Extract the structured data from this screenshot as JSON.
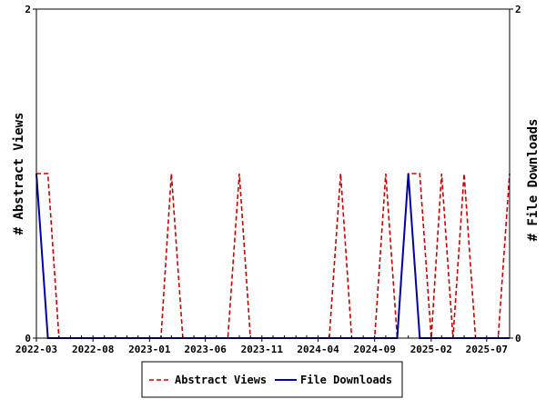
{
  "chart_data": {
    "type": "line",
    "xlabel": "",
    "ylabel_left": "# Abstract Views",
    "ylabel_right": "# File Downloads",
    "xlim": [
      "2022-03-01",
      "2025-09-01"
    ],
    "ylim_left": [
      0,
      2
    ],
    "ylim_right": [
      0,
      2
    ],
    "yticks_left": [
      "0",
      "2"
    ],
    "yticks_right": [
      "0",
      "2"
    ],
    "xticks": [
      {
        "date": "2022-03-01",
        "label": "2022-03"
      },
      {
        "date": "2022-08-01",
        "label": "2022-08"
      },
      {
        "date": "2023-01-01",
        "label": "2023-01"
      },
      {
        "date": "2023-06-01",
        "label": "2023-06"
      },
      {
        "date": "2023-11-01",
        "label": "2023-11"
      },
      {
        "date": "2024-04-01",
        "label": "2024-04"
      },
      {
        "date": "2024-09-01",
        "label": "2024-09"
      },
      {
        "date": "2025-02-01",
        "label": "2025-02"
      },
      {
        "date": "2025-07-01",
        "label": "2025-07"
      }
    ],
    "grid": false,
    "legend_position": "bottom-center",
    "series": [
      {
        "name": "Abstract Views",
        "axis": "left",
        "color": "#cc0000",
        "dash": "dashed",
        "points": [
          [
            "2022-03-01",
            1
          ],
          [
            "2022-04-01",
            1
          ],
          [
            "2022-05-01",
            0
          ],
          [
            "2022-06-01",
            0
          ],
          [
            "2022-07-01",
            0
          ],
          [
            "2022-08-01",
            0
          ],
          [
            "2022-09-01",
            0
          ],
          [
            "2022-10-01",
            0
          ],
          [
            "2022-11-01",
            0
          ],
          [
            "2022-12-01",
            0
          ],
          [
            "2023-01-01",
            0
          ],
          [
            "2023-02-01",
            0
          ],
          [
            "2023-03-01",
            1
          ],
          [
            "2023-04-01",
            0
          ],
          [
            "2023-05-01",
            0
          ],
          [
            "2023-06-01",
            0
          ],
          [
            "2023-07-01",
            0
          ],
          [
            "2023-08-01",
            0
          ],
          [
            "2023-09-01",
            1
          ],
          [
            "2023-10-01",
            0
          ],
          [
            "2023-11-01",
            0
          ],
          [
            "2023-12-01",
            0
          ],
          [
            "2024-01-01",
            0
          ],
          [
            "2024-02-01",
            0
          ],
          [
            "2024-03-01",
            0
          ],
          [
            "2024-04-01",
            0
          ],
          [
            "2024-05-01",
            0
          ],
          [
            "2024-06-01",
            1
          ],
          [
            "2024-07-01",
            0
          ],
          [
            "2024-08-01",
            0
          ],
          [
            "2024-09-01",
            0
          ],
          [
            "2024-10-01",
            1
          ],
          [
            "2024-11-01",
            0
          ],
          [
            "2024-12-01",
            1
          ],
          [
            "2025-01-01",
            1
          ],
          [
            "2025-02-01",
            0
          ],
          [
            "2025-03-01",
            1
          ],
          [
            "2025-04-01",
            0
          ],
          [
            "2025-05-01",
            1
          ],
          [
            "2025-06-01",
            0
          ],
          [
            "2025-07-01",
            0
          ],
          [
            "2025-08-01",
            0
          ],
          [
            "2025-09-01",
            1
          ]
        ]
      },
      {
        "name": "File Downloads",
        "axis": "right",
        "color": "#0000aa",
        "dash": "solid",
        "points": [
          [
            "2022-03-01",
            1
          ],
          [
            "2022-04-01",
            0
          ],
          [
            "2022-05-01",
            0
          ],
          [
            "2022-06-01",
            0
          ],
          [
            "2022-07-01",
            0
          ],
          [
            "2022-08-01",
            0
          ],
          [
            "2022-09-01",
            0
          ],
          [
            "2022-10-01",
            0
          ],
          [
            "2022-11-01",
            0
          ],
          [
            "2022-12-01",
            0
          ],
          [
            "2023-01-01",
            0
          ],
          [
            "2023-02-01",
            0
          ],
          [
            "2023-03-01",
            0
          ],
          [
            "2023-04-01",
            0
          ],
          [
            "2023-05-01",
            0
          ],
          [
            "2023-06-01",
            0
          ],
          [
            "2023-07-01",
            0
          ],
          [
            "2023-08-01",
            0
          ],
          [
            "2023-09-01",
            0
          ],
          [
            "2023-10-01",
            0
          ],
          [
            "2023-11-01",
            0
          ],
          [
            "2023-12-01",
            0
          ],
          [
            "2024-01-01",
            0
          ],
          [
            "2024-02-01",
            0
          ],
          [
            "2024-03-01",
            0
          ],
          [
            "2024-04-01",
            0
          ],
          [
            "2024-05-01",
            0
          ],
          [
            "2024-06-01",
            0
          ],
          [
            "2024-07-01",
            0
          ],
          [
            "2024-08-01",
            0
          ],
          [
            "2024-09-01",
            0
          ],
          [
            "2024-10-01",
            0
          ],
          [
            "2024-11-01",
            0
          ],
          [
            "2024-12-01",
            1
          ],
          [
            "2025-01-01",
            0
          ],
          [
            "2025-02-01",
            0
          ],
          [
            "2025-03-01",
            0
          ],
          [
            "2025-04-01",
            0
          ],
          [
            "2025-05-01",
            0
          ],
          [
            "2025-06-01",
            0
          ],
          [
            "2025-07-01",
            0
          ],
          [
            "2025-08-01",
            0
          ],
          [
            "2025-09-01",
            0
          ]
        ]
      }
    ]
  }
}
